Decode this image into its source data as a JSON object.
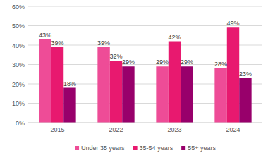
{
  "chart_data": {
    "type": "bar",
    "categories": [
      "2015",
      "2022",
      "2023",
      "2024"
    ],
    "series": [
      {
        "name": "Under 35 years",
        "color": "#ee4c97",
        "values": [
          43,
          39,
          29,
          28
        ],
        "value_labels": [
          "43%",
          "39%",
          "29%",
          "28%"
        ]
      },
      {
        "name": "35-54 years",
        "color": "#e8196f",
        "values": [
          39,
          32,
          42,
          49
        ],
        "value_labels": [
          "39%",
          "32%",
          "42%",
          "49%"
        ]
      },
      {
        "name": "55+ years",
        "color": "#98006b",
        "values": [
          18,
          29,
          29,
          23
        ],
        "value_labels": [
          "18%",
          "29%",
          "29%",
          "23%"
        ]
      }
    ],
    "ylim": [
      0,
      60
    ],
    "yticks": [
      {
        "value": 0,
        "label": "0%"
      },
      {
        "value": 10,
        "label": "10%"
      },
      {
        "value": 20,
        "label": "20%"
      },
      {
        "value": 30,
        "label": "30%"
      },
      {
        "value": 40,
        "label": "40%"
      },
      {
        "value": 50,
        "label": "50%"
      },
      {
        "value": 60,
        "label": "60%"
      }
    ],
    "grid": true,
    "data_labels": true,
    "legend": "bottom"
  }
}
